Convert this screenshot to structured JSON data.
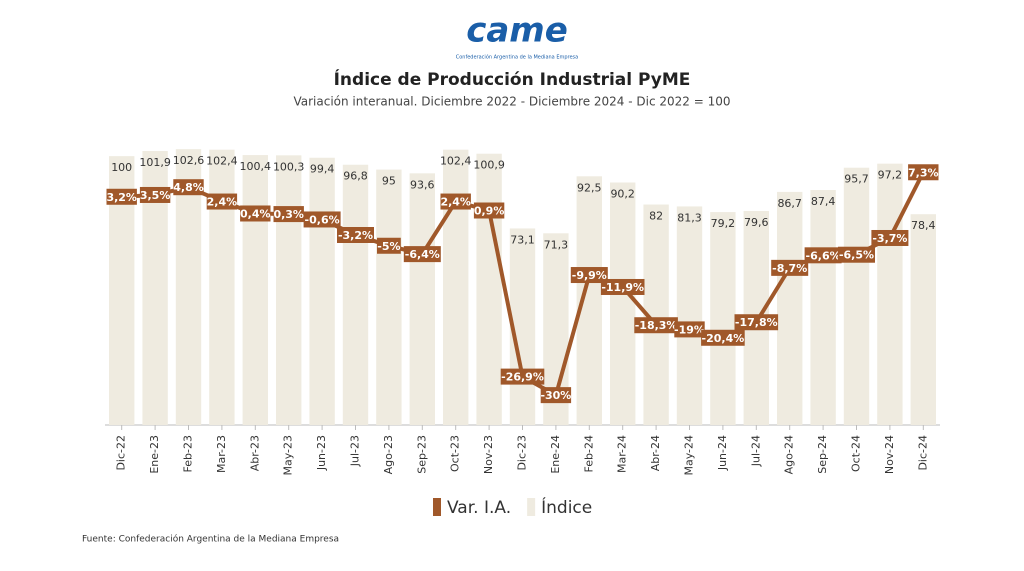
{
  "logo": {
    "name": "came",
    "tagline": "Confederación Argentina de la Mediana Empresa"
  },
  "chart_data": {
    "type": "bar",
    "title": "Índice de Producción Industrial PyME",
    "subtitle": "Variación interanual. Diciembre 2022 - Diciembre 2024 - Dic 2022 = 100",
    "source": "Fuente: Confederación Argentina de la Mediana Empresa",
    "categories": [
      "Dic-22",
      "Ene-23",
      "Feb-23",
      "Mar-23",
      "Abr-23",
      "May-23",
      "Jun-23",
      "Jul-23",
      "Ago-23",
      "Sep-23",
      "Oct-23",
      "Nov-23",
      "Dic-23",
      "Ene-24",
      "Feb-24",
      "Mar-24",
      "Abr-24",
      "May-24",
      "Jun-24",
      "Jul-24",
      "Ago-24",
      "Sep-24",
      "Oct-24",
      "Nov-24",
      "Dic-24"
    ],
    "ylim": [
      0,
      106
    ],
    "y2lim": [
      -35,
      12.7
    ],
    "series": [
      {
        "name": "Var. I.A.",
        "type": "line",
        "axis": "y2",
        "color": "#a0582a",
        "values": [
          3.2,
          3.5,
          4.8,
          2.4,
          0.4,
          0.3,
          -0.6,
          -3.2,
          -5,
          -6.4,
          2.4,
          0.9,
          -26.9,
          -30,
          -9.9,
          -11.9,
          -18.3,
          -19,
          -20.4,
          -17.8,
          -8.7,
          -6.6,
          -6.5,
          -3.7,
          7.3
        ],
        "value_labels": [
          "3,2%",
          "3,5%",
          "4,8%",
          "2,4%",
          "0,4%",
          "0,3%",
          "-0,6%",
          "-3,2%",
          "-5%",
          "-6,4%",
          "2,4%",
          "0,9%",
          "-26,9%",
          "-30%",
          "-9,9%",
          "-11,9%",
          "-18,3%",
          "-19%",
          "-20,4%",
          "-17,8%",
          "-8,7%",
          "-6,6%",
          "-6,5%",
          "-3,7%",
          "7,3%"
        ]
      },
      {
        "name": "Índice",
        "type": "bar",
        "color": "#efebe0",
        "values": [
          100,
          101.9,
          102.6,
          102.4,
          100.4,
          100.3,
          99.4,
          96.8,
          95,
          93.6,
          102.4,
          100.9,
          73.1,
          71.3,
          92.5,
          90.2,
          82,
          81.3,
          79.2,
          79.6,
          86.7,
          87.4,
          95.7,
          97.2,
          78.4
        ],
        "value_labels": [
          "100",
          "101,9",
          "102,6",
          "102,4",
          "100,4",
          "100,3",
          "99,4",
          "96,8",
          "95",
          "93,6",
          "102,4",
          "100,9",
          "73,1",
          "71,3",
          "92,5",
          "90,2",
          "82",
          "81,3",
          "79,2",
          "79,6",
          "86,7",
          "87,4",
          "95,7",
          "97,2",
          "78,4"
        ]
      }
    ]
  }
}
